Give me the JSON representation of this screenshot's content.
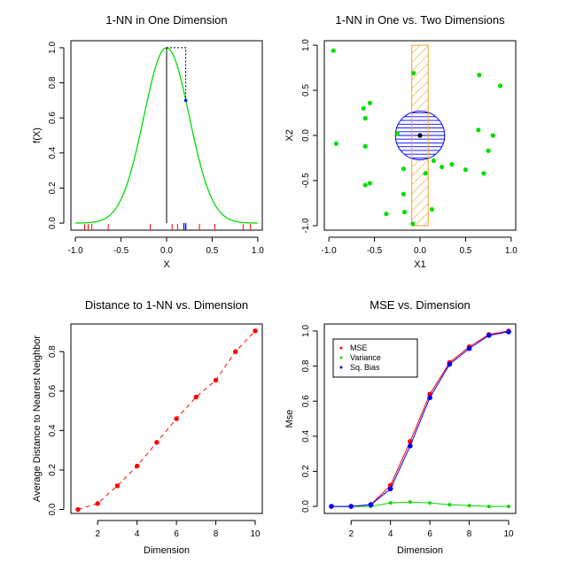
{
  "colors": {
    "green": "#00dd00",
    "red": "#ff0000",
    "blue": "#0000ff",
    "orange": "#f0a030",
    "black": "#000000"
  },
  "chart_data": [
    {
      "type": "line",
      "title": "1-NN in One Dimension",
      "xlabel": "X",
      "ylabel": "f(X)",
      "xlim": [
        -1.05,
        1.05
      ],
      "ylim": [
        -0.04,
        1.04
      ],
      "xticks": [
        "-1.0",
        "-0.5",
        "0.0",
        "0.5",
        "1.0"
      ],
      "yticks": [
        "0.0",
        "0.2",
        "0.4",
        "0.6",
        "0.8",
        "1.0"
      ],
      "curve": "exp(-8*x^2)",
      "rug_red": [
        -0.9,
        -0.86,
        -0.82,
        -0.64,
        -0.18,
        0.06,
        0.12,
        0.36,
        0.53,
        0.84,
        0.92
      ],
      "rug_blue": [
        0.19,
        0.21
      ],
      "point": [
        0.21,
        0.7
      ],
      "dotted_box": [
        0.0,
        0.21,
        0.7,
        1.0
      ]
    },
    {
      "type": "scatter",
      "title": "1-NN in One vs. Two Dimensions",
      "xlabel": "X1",
      "ylabel": "X2",
      "xlim": [
        -1.05,
        1.05
      ],
      "ylim": [
        -1.05,
        1.05
      ],
      "xticks": [
        "-1.0",
        "-0.5",
        "0.0",
        "0.5",
        "1.0"
      ],
      "yticks": [
        "-1.0",
        "-0.5",
        "0.0",
        "0.5",
        "1.0"
      ],
      "points": [
        [
          -0.95,
          0.94
        ],
        [
          -0.07,
          0.69
        ],
        [
          0.65,
          0.67
        ],
        [
          0.88,
          0.55
        ],
        [
          -0.62,
          0.3
        ],
        [
          -0.55,
          0.36
        ],
        [
          -0.6,
          0.19
        ],
        [
          -0.92,
          -0.09
        ],
        [
          -0.6,
          -0.12
        ],
        [
          -0.25,
          0.02
        ],
        [
          0.64,
          0.06
        ],
        [
          0.8,
          0.0
        ],
        [
          -0.18,
          -0.37
        ],
        [
          0.06,
          -0.42
        ],
        [
          0.15,
          -0.28
        ],
        [
          0.24,
          -0.35
        ],
        [
          0.35,
          -0.32
        ],
        [
          0.5,
          -0.38
        ],
        [
          -0.6,
          -0.55
        ],
        [
          -0.55,
          -0.53
        ],
        [
          -0.18,
          -0.65
        ],
        [
          -0.17,
          -0.85
        ],
        [
          -0.37,
          -0.87
        ],
        [
          0.13,
          -0.82
        ],
        [
          -0.08,
          -0.98
        ],
        [
          0.75,
          -0.17
        ],
        [
          0.7,
          -0.42
        ]
      ],
      "center": [
        0.0,
        0.0
      ],
      "circle_radius": 0.27,
      "rect": [
        -0.09,
        0.09,
        -1.0,
        1.0
      ]
    },
    {
      "type": "scatter",
      "title": "Distance to 1-NN vs. Dimension",
      "xlabel": "Dimension",
      "ylabel": "Average Distance to Nearest Neighbor",
      "xlim": [
        0.64,
        10.36
      ],
      "ylim": [
        -0.02,
        0.94
      ],
      "xticks": [
        "2",
        "4",
        "6",
        "8",
        "10"
      ],
      "yticks": [
        "0.0",
        "0.2",
        "0.4",
        "0.6",
        "0.8"
      ],
      "x": [
        1,
        2,
        3,
        4,
        5,
        6,
        7,
        8,
        9,
        10
      ],
      "y": [
        0.0,
        0.03,
        0.12,
        0.22,
        0.34,
        0.46,
        0.57,
        0.655,
        0.8,
        0.905
      ]
    },
    {
      "type": "line",
      "title": "MSE vs. Dimension",
      "xlabel": "Dimension",
      "ylabel": "Mse",
      "xlim": [
        0.64,
        10.36
      ],
      "ylim": [
        -0.04,
        1.04
      ],
      "xticks": [
        "2",
        "4",
        "6",
        "8",
        "10"
      ],
      "yticks": [
        "0.0",
        "0.2",
        "0.4",
        "0.6",
        "0.8",
        "1.0"
      ],
      "legend": [
        "MSE",
        "Variance",
        "Sq. Bias"
      ],
      "x": [
        1,
        2,
        3,
        4,
        5,
        6,
        7,
        8,
        9,
        10
      ],
      "series": [
        {
          "name": "MSE",
          "values": [
            0.0,
            0.0,
            0.01,
            0.12,
            0.37,
            0.64,
            0.82,
            0.91,
            0.98,
            1.0
          ]
        },
        {
          "name": "Variance",
          "values": [
            0.0,
            0.0,
            0.0,
            0.02,
            0.025,
            0.02,
            0.01,
            0.005,
            0.0,
            0.0
          ]
        },
        {
          "name": "Sq. Bias",
          "values": [
            0.0,
            0.0,
            0.01,
            0.1,
            0.345,
            0.62,
            0.81,
            0.9,
            0.975,
            0.995
          ]
        }
      ]
    }
  ]
}
